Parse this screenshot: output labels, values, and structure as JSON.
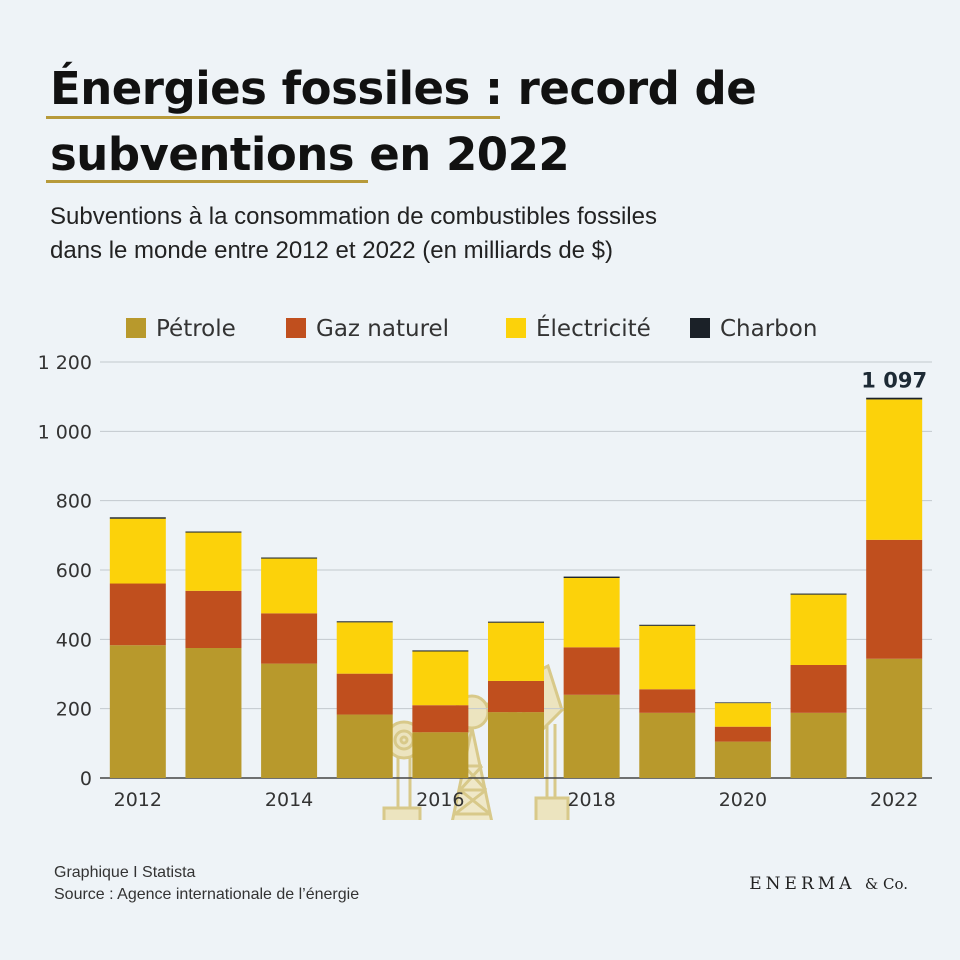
{
  "header": {
    "title_part1": "Énergies fossiles",
    "title_part2": " : record de",
    "title_part3": "subventions",
    "title_part4": " en 2022",
    "subtitle_line1": "Subventions à la consommation de combustibles fossiles",
    "subtitle_line2": "dans le monde entre 2012 et 2022 (en milliards de $)"
  },
  "footer": {
    "line1": "Graphique I Statista",
    "line2": "Source : Agence internationale de l’énergie",
    "brand": "ENERMA",
    "brand_suffix": "& Co."
  },
  "colors": {
    "petrole": "#b8992c",
    "gaz": "#c04f1e",
    "electricite": "#fcd20a",
    "charbon": "#1b2128",
    "accent": "#b79a3a",
    "icon": "#d8c98a"
  },
  "decorative_icon": "oil-pumpjack-icon",
  "chart_data": {
    "type": "bar",
    "stacked": true,
    "categories": [
      "2012",
      "2013",
      "2014",
      "2015",
      "2016",
      "2017",
      "2018",
      "2019",
      "2020",
      "2021",
      "2022"
    ],
    "x_tick_labels": [
      "2012",
      "",
      "2014",
      "",
      "2016",
      "",
      "2018",
      "",
      "2020",
      "",
      "2022"
    ],
    "series": [
      {
        "name": "Pétrole",
        "key": "petrole",
        "values": [
          383,
          375,
          330,
          183,
          132,
          190,
          240,
          188,
          105,
          188,
          344
        ]
      },
      {
        "name": "Gaz naturel",
        "key": "gaz",
        "values": [
          178,
          165,
          145,
          118,
          78,
          90,
          137,
          68,
          43,
          138,
          343
        ]
      },
      {
        "name": "Électricité",
        "key": "electricite",
        "values": [
          187,
          168,
          158,
          148,
          155,
          168,
          200,
          183,
          68,
          203,
          405
        ]
      },
      {
        "name": "Charbon",
        "key": "charbon",
        "values": [
          4,
          3,
          3,
          3,
          3,
          3,
          4,
          3,
          2,
          3,
          5
        ]
      }
    ],
    "ylim": [
      0,
      1200
    ],
    "y_ticks": [
      0,
      200,
      400,
      600,
      800,
      1000,
      1200
    ],
    "y_tick_labels": [
      "0",
      "200",
      "400",
      "600",
      "800",
      "1 000",
      "1 200"
    ],
    "annotations": [
      {
        "category": "2022",
        "value": 1097,
        "text": "1 097"
      }
    ],
    "legend_position": "top",
    "grid": true,
    "title": "Subventions à la consommation de combustibles fossiles dans le monde entre 2012 et 2022 (en milliards de $)",
    "xlabel": "",
    "ylabel": ""
  }
}
